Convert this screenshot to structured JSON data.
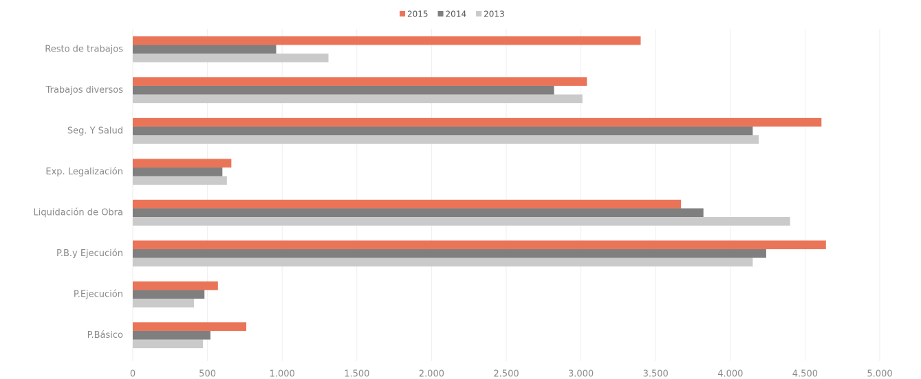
{
  "chart_data": {
    "type": "hbar",
    "categories": [
      "Resto de trabajos",
      "Trabajos diversos",
      "Seg. Y Salud",
      "Exp. Legalización",
      "Liquidación de Obra",
      "P.B.y Ejecución",
      "P.Ejecución",
      "P.Básico"
    ],
    "series": [
      {
        "name": "2015",
        "color": "#ea7458",
        "values": [
          3400,
          3040,
          4610,
          660,
          3670,
          4640,
          570,
          760
        ]
      },
      {
        "name": "2014",
        "color": "#7f7f7f",
        "values": [
          960,
          2820,
          4150,
          600,
          3820,
          4240,
          480,
          520
        ]
      },
      {
        "name": "2013",
        "color": "#cacaca",
        "values": [
          1310,
          3010,
          4190,
          630,
          4400,
          4150,
          410,
          470
        ]
      }
    ],
    "xlim": [
      0,
      5000
    ],
    "xticks": [
      0,
      500,
      {
        "value": 1000,
        "label": "1.000"
      },
      {
        "value": 1500,
        "label": "1.500"
      },
      {
        "value": 2000,
        "label": "2.000"
      },
      {
        "value": 2500,
        "label": "2.500"
      },
      {
        "value": 3000,
        "label": "3.000"
      },
      {
        "value": 3500,
        "label": "3.500"
      },
      {
        "value": 4000,
        "label": "4.000"
      },
      {
        "value": 4500,
        "label": "4.500"
      },
      {
        "value": 5000,
        "label": "5.000"
      }
    ],
    "grid": true,
    "legend": "top"
  }
}
